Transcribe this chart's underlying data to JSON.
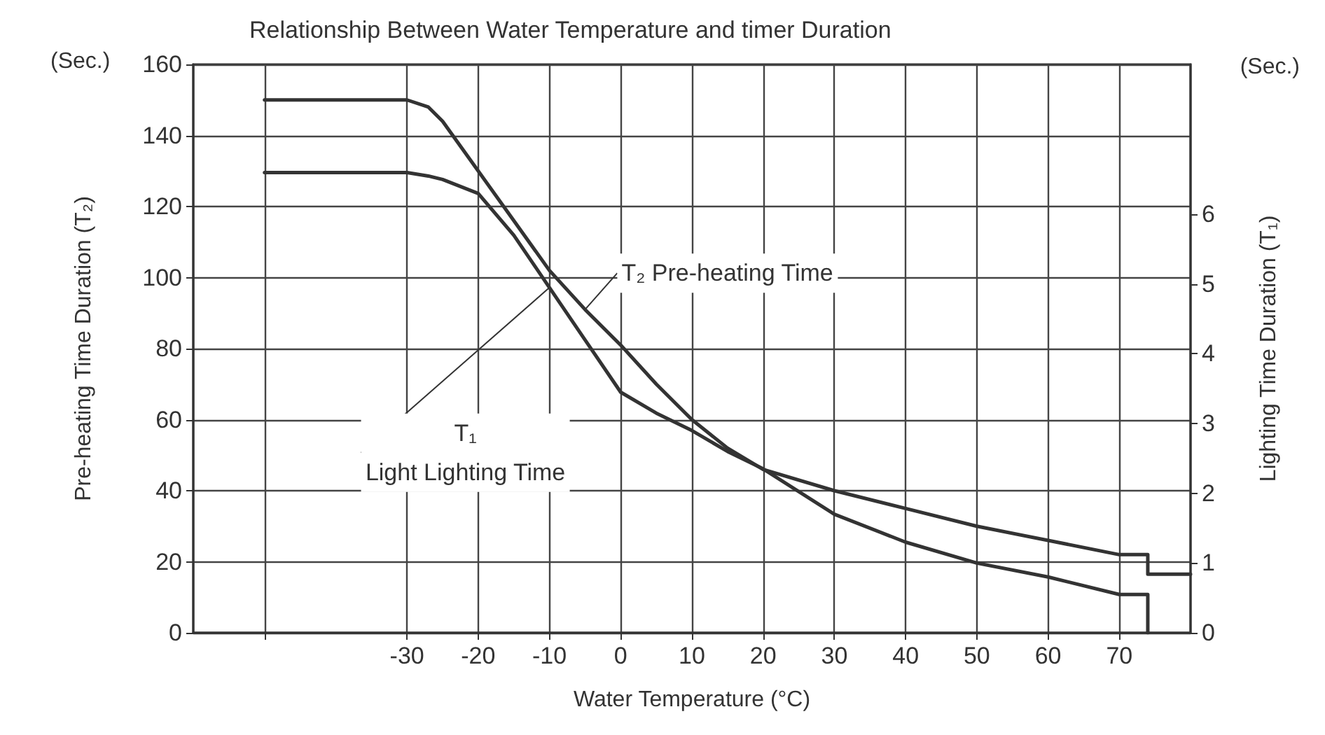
{
  "chart_data": {
    "type": "line",
    "title": "Relationship Between Water Temperature and timer Duration",
    "xlabel": "Water Temperature (°C)",
    "ylabel": "Pre-heating Time Duration (T₂)",
    "y2label": "Lighting Time Duration (T₁)",
    "annotations": [
      "(Sec.)",
      "(Sec.)"
    ],
    "series": [
      {
        "name": "T₂ Pre-heating Time",
        "color": "#333333",
        "x": [
          -50,
          -30,
          -27,
          -25,
          -20,
          -15,
          -10,
          -5,
          0,
          5,
          10,
          15,
          20,
          30,
          40,
          50,
          60,
          70,
          74,
          74,
          80
        ],
        "values": [
          150,
          150,
          148,
          144,
          130,
          116,
          102,
          91,
          81,
          70,
          60,
          52,
          46,
          40,
          35,
          30,
          26,
          22,
          22,
          16.5,
          16.5
        ]
      },
      {
        "name": "T₁\nLight Lighting Time",
        "color": "#333333",
        "axis": "y2",
        "x": [
          -50,
          -30,
          -27,
          -25,
          -20,
          -15,
          -10,
          -5,
          0,
          5,
          10,
          15,
          20,
          30,
          40,
          50,
          60,
          70,
          74,
          74
        ],
        "values": [
          6.6,
          6.6,
          6.55,
          6.5,
          6.3,
          5.7,
          4.95,
          4.2,
          3.45,
          3.15,
          2.9,
          2.6,
          2.35,
          1.7,
          1.3,
          1.0,
          0.8,
          0.55,
          0.55,
          0
        ]
      }
    ],
    "xlim": [
      -60,
      80
    ],
    "xticks": [
      {
        "value": -50,
        "label": null
      },
      -30,
      -20,
      -10,
      0,
      10,
      20,
      30,
      40,
      50,
      60,
      70
    ],
    "ylim": [
      0,
      160
    ],
    "yticks": [
      0,
      20,
      40,
      60,
      80,
      100,
      120,
      140,
      160
    ],
    "y2lim": [
      0,
      8.15
    ],
    "y2ticks": [
      0,
      1,
      2,
      3,
      4,
      5,
      6
    ],
    "grid": true,
    "legend": false,
    "marker": "none",
    "line_style": "solid"
  }
}
